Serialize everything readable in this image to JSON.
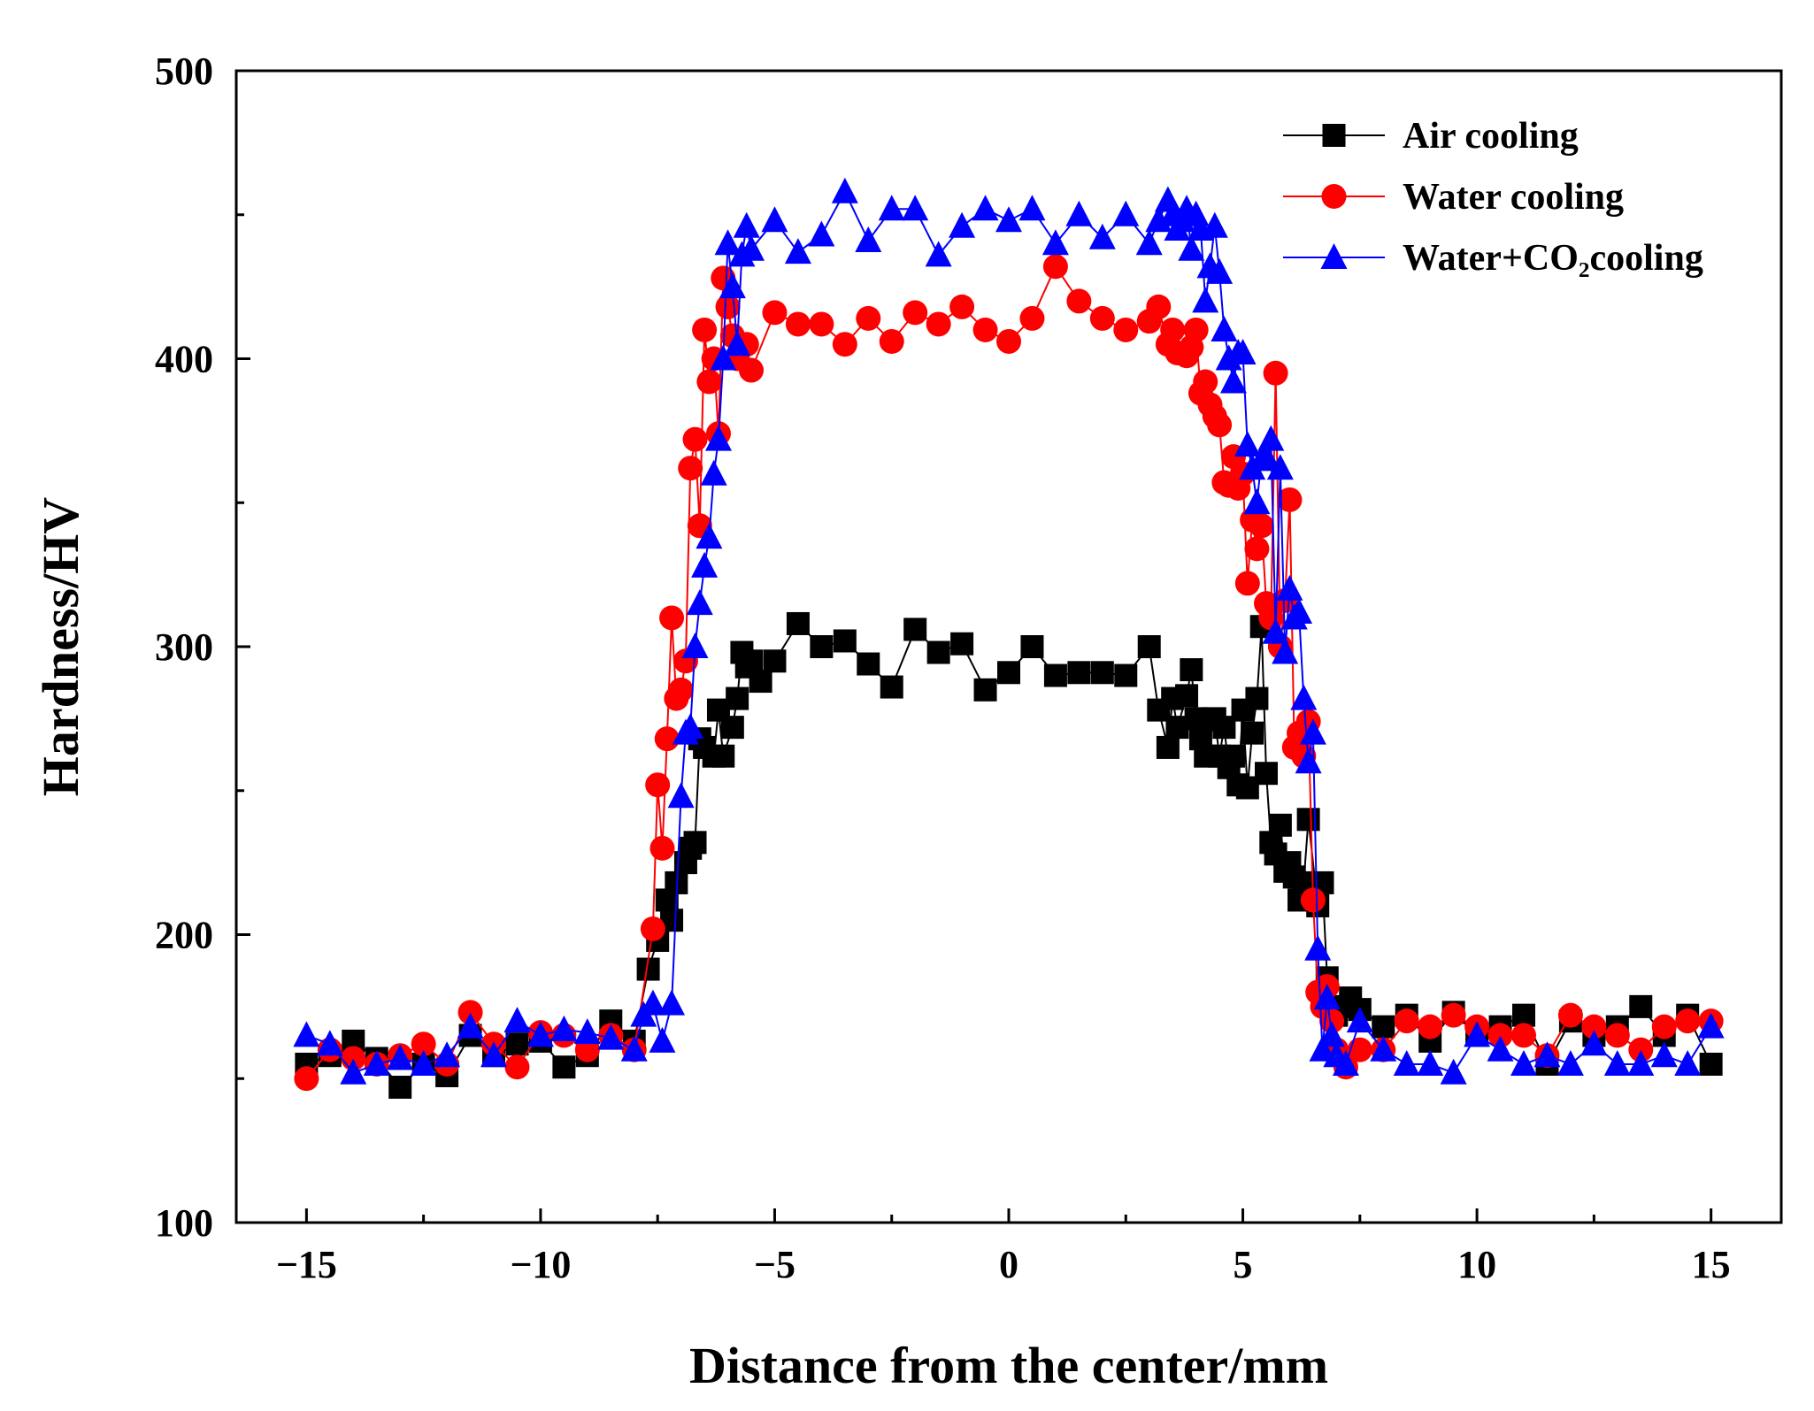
{
  "chart_data": {
    "type": "line",
    "title": "",
    "xlabel": "Distance from the center/mm",
    "ylabel": "Hardness/HV",
    "xlim": [
      -16.5,
      16.5
    ],
    "ylim": [
      100,
      500
    ],
    "xticks": [
      -15,
      -10,
      -5,
      0,
      5,
      10,
      15
    ],
    "yticks": [
      100,
      200,
      300,
      400,
      500
    ],
    "xtick_labels": [
      "−15",
      "−10",
      "−5",
      "0",
      "5",
      "10",
      "15"
    ],
    "ytick_labels": [
      "100",
      "200",
      "300",
      "400",
      "500"
    ],
    "grid": false,
    "legend_position": "top-right",
    "series": [
      {
        "name": "Air cooling",
        "color": "#000000",
        "marker": "square",
        "x": [
          -15,
          -14.5,
          -14,
          -13.5,
          -13,
          -12.5,
          -12,
          -11.5,
          -11,
          -10.5,
          -10,
          -9.5,
          -9,
          -8.5,
          -8,
          -7.7,
          -7.5,
          -7.3,
          -7.2,
          -7.1,
          -6.9,
          -6.8,
          -6.7,
          -6.6,
          -6.5,
          -6.3,
          -6.2,
          -6.1,
          -5.9,
          -5.8,
          -5.7,
          -5.6,
          -5.5,
          -5.3,
          -5,
          -4.5,
          -4,
          -3.5,
          -3,
          -2.5,
          -2,
          -1.5,
          -1,
          -0.5,
          0,
          0.5,
          1,
          1.5,
          2,
          2.5,
          3,
          3.2,
          3.4,
          3.5,
          3.6,
          3.8,
          3.9,
          4,
          4.1,
          4.2,
          4.4,
          4.5,
          4.6,
          4.7,
          4.8,
          4.9,
          5,
          5.1,
          5.2,
          5.3,
          5.4,
          5.5,
          5.6,
          5.7,
          5.8,
          5.9,
          6,
          6.1,
          6.2,
          6.3,
          6.4,
          6.6,
          6.7,
          6.8,
          7,
          7.1,
          7.3,
          7.5,
          8,
          8.5,
          9,
          9.5,
          10,
          10.5,
          11,
          11.5,
          12,
          12.5,
          13,
          13.5,
          14,
          14.5,
          15
        ],
        "y": [
          155,
          158,
          163,
          157,
          147,
          155,
          151,
          165,
          158,
          162,
          163,
          154,
          158,
          170,
          163,
          188,
          198,
          212,
          205,
          218,
          225,
          230,
          232,
          268,
          265,
          262,
          278,
          262,
          272,
          282,
          298,
          293,
          295,
          288,
          295,
          308,
          300,
          302,
          294,
          286,
          306,
          298,
          301,
          285,
          291,
          300,
          290,
          291,
          291,
          290,
          300,
          278,
          265,
          282,
          272,
          283,
          292,
          275,
          268,
          262,
          275,
          262,
          272,
          258,
          262,
          252,
          278,
          251,
          270,
          282,
          307,
          256,
          232,
          228,
          238,
          222,
          225,
          220,
          212,
          218,
          240,
          210,
          218,
          185,
          172,
          175,
          178,
          174,
          168,
          172,
          163,
          173,
          165,
          168,
          172,
          155,
          170,
          165,
          168,
          175,
          165,
          172,
          155
        ]
      },
      {
        "name": "Water cooling",
        "color": "#ff0000",
        "marker": "circle",
        "x": [
          -15,
          -14.5,
          -14,
          -13.5,
          -13,
          -12.5,
          -12,
          -11.5,
          -11,
          -10.5,
          -10,
          -9.5,
          -9,
          -8.5,
          -8,
          -7.6,
          -7.5,
          -7.4,
          -7.3,
          -7.2,
          -7.1,
          -7,
          -6.9,
          -6.8,
          -6.7,
          -6.6,
          -6.5,
          -6.4,
          -6.3,
          -6.2,
          -6.1,
          -6,
          -5.9,
          -5.8,
          -5.6,
          -5.5,
          -5,
          -4.5,
          -4,
          -3.5,
          -3,
          -2.5,
          -2,
          -1.5,
          -1,
          -0.5,
          0,
          0.5,
          1,
          1.5,
          2,
          2.5,
          3,
          3.2,
          3.4,
          3.5,
          3.6,
          3.8,
          3.9,
          4,
          4.1,
          4.2,
          4.3,
          4.4,
          4.5,
          4.6,
          4.7,
          4.8,
          4.9,
          5,
          5.1,
          5.2,
          5.3,
          5.4,
          5.5,
          5.6,
          5.7,
          5.8,
          5.9,
          6,
          6.1,
          6.2,
          6.3,
          6.4,
          6.5,
          6.6,
          6.7,
          6.8,
          6.9,
          7,
          7.2,
          7.5,
          8,
          8.5,
          9,
          9.5,
          10,
          10.5,
          11,
          11.5,
          12,
          12.5,
          13,
          13.5,
          14,
          14.5,
          15
        ],
        "y": [
          150,
          160,
          157,
          155,
          158,
          162,
          155,
          173,
          162,
          154,
          166,
          165,
          160,
          165,
          160,
          202,
          252,
          230,
          268,
          310,
          282,
          285,
          295,
          362,
          372,
          342,
          410,
          392,
          400,
          374,
          428,
          418,
          408,
          400,
          405,
          396,
          416,
          412,
          412,
          405,
          414,
          406,
          416,
          412,
          418,
          410,
          406,
          414,
          432,
          420,
          414,
          410,
          413,
          418,
          405,
          410,
          402,
          401,
          404,
          410,
          388,
          392,
          384,
          380,
          377,
          357,
          356,
          366,
          355,
          360,
          322,
          344,
          334,
          342,
          315,
          310,
          395,
          300,
          316,
          351,
          265,
          270,
          262,
          274,
          212,
          180,
          175,
          182,
          170,
          160,
          154,
          160,
          160,
          170,
          168,
          172,
          168,
          165,
          165,
          158,
          172,
          168,
          165,
          160,
          168,
          170,
          170
        ]
      },
      {
        "name": "Water+CO₂cooling",
        "color": "#0000ff",
        "marker": "triangle",
        "x": [
          -15,
          -14.5,
          -14,
          -13.5,
          -13,
          -12.5,
          -12,
          -11.5,
          -11,
          -10.5,
          -10,
          -9.5,
          -9,
          -8.5,
          -8,
          -7.8,
          -7.6,
          -7.4,
          -7.2,
          -7,
          -6.9,
          -6.8,
          -6.7,
          -6.6,
          -6.5,
          -6.4,
          -6.3,
          -6.2,
          -6.1,
          -6,
          -5.9,
          -5.8,
          -5.7,
          -5.6,
          -5.5,
          -5,
          -4.5,
          -4,
          -3.5,
          -3,
          -2.5,
          -2,
          -1.5,
          -1,
          -0.5,
          0,
          0.5,
          1,
          1.5,
          2,
          2.5,
          3,
          3.2,
          3.4,
          3.5,
          3.6,
          3.7,
          3.8,
          3.9,
          4,
          4.1,
          4.2,
          4.3,
          4.4,
          4.5,
          4.6,
          4.7,
          4.8,
          4.9,
          5,
          5.1,
          5.2,
          5.3,
          5.4,
          5.5,
          5.6,
          5.7,
          5.8,
          5.9,
          6,
          6.1,
          6.2,
          6.3,
          6.4,
          6.5,
          6.6,
          6.7,
          6.8,
          6.9,
          7,
          7.2,
          7.5,
          8,
          8.5,
          9,
          9.5,
          10,
          10.5,
          11,
          11.5,
          12,
          12.5,
          13,
          13.5,
          14,
          14.5,
          15
        ],
        "y": [
          165,
          162,
          152,
          155,
          157,
          155,
          158,
          168,
          158,
          170,
          165,
          167,
          166,
          164,
          160,
          172,
          176,
          163,
          176,
          248,
          270,
          272,
          300,
          315,
          328,
          338,
          360,
          372,
          400,
          440,
          425,
          405,
          436,
          446,
          438,
          448,
          437,
          443,
          458,
          441,
          452,
          452,
          436,
          446,
          452,
          448,
          452,
          440,
          450,
          442,
          450,
          440,
          448,
          455,
          450,
          445,
          448,
          452,
          438,
          450,
          445,
          420,
          432,
          446,
          430,
          410,
          400,
          392,
          402,
          402,
          370,
          362,
          350,
          365,
          366,
          372,
          305,
          362,
          298,
          320,
          310,
          312,
          282,
          260,
          270,
          195,
          160,
          178,
          165,
          158,
          155,
          170,
          160,
          155,
          155,
          152,
          165,
          160,
          155,
          158,
          155,
          162,
          155,
          155,
          158,
          155,
          168
        ]
      }
    ]
  }
}
